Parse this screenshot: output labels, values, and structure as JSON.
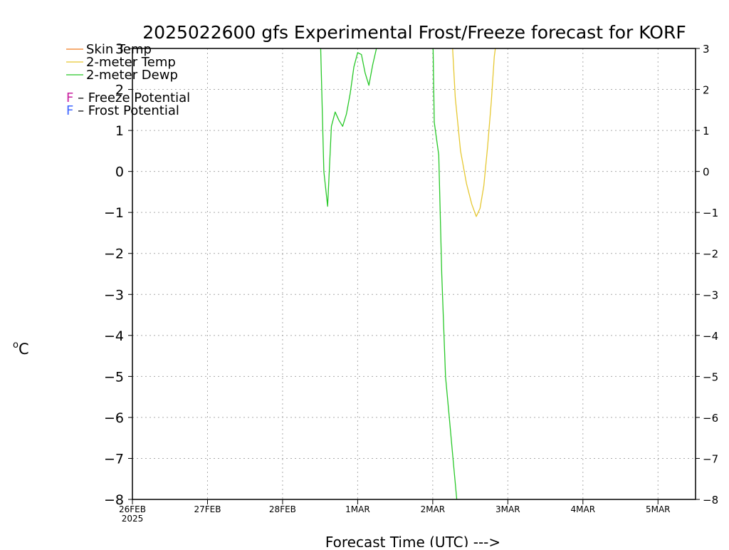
{
  "chart_data": {
    "type": "line",
    "title": "2025022600 gfs Experimental Frost/Freeze forecast for KORF",
    "xlabel": "Forecast Time (UTC) --->",
    "ylabel": "°C",
    "ylabel_unit_sup": "o",
    "ylabel_unit_main": "C",
    "ylim": [
      -8,
      3
    ],
    "yticks": [
      3,
      2,
      1,
      0,
      -1,
      -2,
      -3,
      -4,
      -5,
      -6,
      -7,
      -8
    ],
    "ytick_labels": [
      "3",
      "2",
      "1",
      "0",
      "−1",
      "−2",
      "−3",
      "−4",
      "−5",
      "−6",
      "−7",
      "−8"
    ],
    "x_unit": "days since 26FEB2025 00Z",
    "xlim": [
      0,
      7.5
    ],
    "xticks": [
      {
        "x": 0,
        "label": "26FEB",
        "sublabel": "2025"
      },
      {
        "x": 1,
        "label": "27FEB",
        "sublabel": ""
      },
      {
        "x": 2,
        "label": "28FEB",
        "sublabel": ""
      },
      {
        "x": 3,
        "label": "1MAR",
        "sublabel": ""
      },
      {
        "x": 4,
        "label": "2MAR",
        "sublabel": ""
      },
      {
        "x": 5,
        "label": "3MAR",
        "sublabel": ""
      },
      {
        "x": 6,
        "label": "4MAR",
        "sublabel": ""
      },
      {
        "x": 7,
        "label": "5MAR",
        "sublabel": ""
      }
    ],
    "grid": true,
    "legend_position": "top-left",
    "legend": [
      {
        "label": "Skin Temp",
        "color": "#f07a1e"
      },
      {
        "label": "2-meter Temp",
        "color": "#e6c832"
      },
      {
        "label": "2-meter Dewp",
        "color": "#28c828"
      }
    ],
    "legend_potentials": [
      {
        "letter": "F",
        "text": " – Freeze Potential",
        "color": "#c81e9e"
      },
      {
        "letter": "F",
        "text": " – Frost Potential",
        "color": "#3c64ff"
      }
    ],
    "series": [
      {
        "name": "2-meter Dewp",
        "color": "#28c828",
        "segments": [
          [
            [
              2.5,
              3.5
            ],
            [
              2.55,
              0.0
            ],
            [
              2.6,
              -0.85
            ],
            [
              2.65,
              1.1
            ],
            [
              2.7,
              1.45
            ],
            [
              2.75,
              1.25
            ],
            [
              2.8,
              1.1
            ],
            [
              2.85,
              1.4
            ],
            [
              2.9,
              1.9
            ],
            [
              2.95,
              2.55
            ],
            [
              3.0,
              2.9
            ],
            [
              3.05,
              2.85
            ],
            [
              3.1,
              2.4
            ],
            [
              3.15,
              2.1
            ],
            [
              3.2,
              2.6
            ],
            [
              3.25,
              3.0
            ],
            [
              3.3,
              3.5
            ]
          ],
          [
            [
              4.0,
              3.5
            ],
            [
              4.02,
              1.2
            ],
            [
              4.08,
              0.4
            ],
            [
              4.12,
              -2.5
            ],
            [
              4.17,
              -5.0
            ],
            [
              4.22,
              -6.0
            ],
            [
              4.27,
              -7.0
            ],
            [
              4.32,
              -8.0
            ]
          ]
        ]
      },
      {
        "name": "2-meter Temp",
        "color": "#e6c832",
        "segments": [
          [
            [
              4.25,
              3.5
            ],
            [
              4.3,
              1.8
            ],
            [
              4.37,
              0.5
            ],
            [
              4.45,
              -0.3
            ],
            [
              4.52,
              -0.8
            ],
            [
              4.58,
              -1.1
            ],
            [
              4.63,
              -0.9
            ],
            [
              4.68,
              -0.35
            ],
            [
              4.73,
              0.6
            ],
            [
              4.78,
              1.7
            ],
            [
              4.82,
              2.8
            ],
            [
              4.87,
              3.5
            ]
          ]
        ]
      }
    ]
  }
}
